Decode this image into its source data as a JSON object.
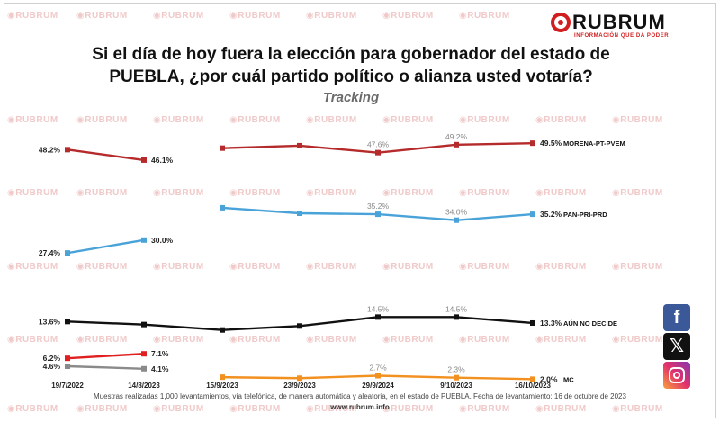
{
  "header": {
    "brand": "RUBRUM",
    "tagline": "INFORMACIÓN QUE DA PODER",
    "title_line1": "Si el día de hoy fuera la elección para gobernador del estado de",
    "title_line2": "PUEBLA, ¿por cuál  partido político o alianza usted votaría?",
    "subtitle": "Tracking"
  },
  "watermark": "RUBRUM",
  "footer": {
    "note": "Muestras realizadas 1,000 levantamientos, vía telefónica, de manera automática y aleatoria, en el estado de PUEBLA. Fecha de levantamiento: 16 de octubre de 2023",
    "site": "www.rubrum.info"
  },
  "social": {
    "facebook": "facebook-icon",
    "x": "x-icon",
    "instagram": "instagram-icon"
  },
  "chart_data": {
    "type": "line",
    "title": "Si el día de hoy fuera la elección para gobernador del estado de PUEBLA, ¿por cuál  partido político o alianza usted votaría?",
    "subtitle": "Tracking",
    "x_tick_labels": [
      "19/7/2022",
      "14/8/2023",
      "15/9/2023",
      "23/9/2023",
      "29/9/2024",
      "9/10/2023",
      "16/10/2023"
    ],
    "series": [
      {
        "name": "MORENA-PT-PVEM",
        "color": "#b52a2a",
        "segments": [
          [
            {
              "x": "19/7/2022",
              "y": 48.2,
              "label": "48.2%"
            },
            {
              "x": "14/8/2023",
              "y": 46.1,
              "label": "46.1%"
            }
          ],
          [
            {
              "x": "15/9/2023",
              "y": 48.5
            },
            {
              "x": "23/9/2023",
              "y": 49.0
            },
            {
              "x": "29/9/2024",
              "y": 47.6,
              "label": "47.6%"
            },
            {
              "x": "9/10/2023",
              "y": 49.2,
              "label": "49.2%"
            },
            {
              "x": "16/10/2023",
              "y": 49.5,
              "label": "49.5%"
            }
          ]
        ]
      },
      {
        "name": "PAN-PRI-PRD",
        "color": "#4aa3d8",
        "segments": [
          [
            {
              "x": "19/7/2022",
              "y": 27.4,
              "label": "27.4%"
            },
            {
              "x": "14/8/2023",
              "y": 30.0,
              "label": "30.0%"
            }
          ],
          [
            {
              "x": "15/9/2023",
              "y": 36.5
            },
            {
              "x": "23/9/2023",
              "y": 35.4
            },
            {
              "x": "29/9/2024",
              "y": 35.2,
              "label": "35.2%"
            },
            {
              "x": "9/10/2023",
              "y": 34.0,
              "label": "34.0%"
            },
            {
              "x": "16/10/2023",
              "y": 35.2,
              "label": "35.2%"
            }
          ]
        ]
      },
      {
        "name": "AÚN NO DECIDE",
        "color": "#111111",
        "segments": [
          [
            {
              "x": "19/7/2022",
              "y": 13.6,
              "label": "13.6%"
            },
            {
              "x": "14/8/2023",
              "y": 13.0
            },
            {
              "x": "15/9/2023",
              "y": 11.9
            },
            {
              "x": "23/9/2023",
              "y": 12.7
            },
            {
              "x": "29/9/2024",
              "y": 14.5,
              "label": "14.5%"
            },
            {
              "x": "9/10/2023",
              "y": 14.5,
              "label": "14.5%"
            },
            {
              "x": "16/10/2023",
              "y": 13.3,
              "label": "13.3%"
            }
          ]
        ]
      },
      {
        "name": "",
        "color": "#e02020",
        "segments": [
          [
            {
              "x": "19/7/2022",
              "y": 6.2,
              "label": "6.2%"
            },
            {
              "x": "14/8/2023",
              "y": 7.1,
              "label": "7.1%"
            }
          ]
        ]
      },
      {
        "name": "",
        "color": "#8a8a8a",
        "segments": [
          [
            {
              "x": "19/7/2022",
              "y": 4.6,
              "label": "4.6%"
            },
            {
              "x": "14/8/2023",
              "y": 4.1,
              "label": "4.1%"
            }
          ]
        ]
      },
      {
        "name": "MC",
        "color": "#f29020",
        "segments": [
          [
            {
              "x": "15/9/2023",
              "y": 2.4
            },
            {
              "x": "23/9/2023",
              "y": 2.2
            },
            {
              "x": "29/9/2024",
              "y": 2.7,
              "label": "2.7%"
            },
            {
              "x": "9/10/2023",
              "y": 2.3,
              "label": "2.3%"
            },
            {
              "x": "16/10/2023",
              "y": 2.0,
              "label": "2.0%"
            }
          ]
        ]
      }
    ]
  }
}
